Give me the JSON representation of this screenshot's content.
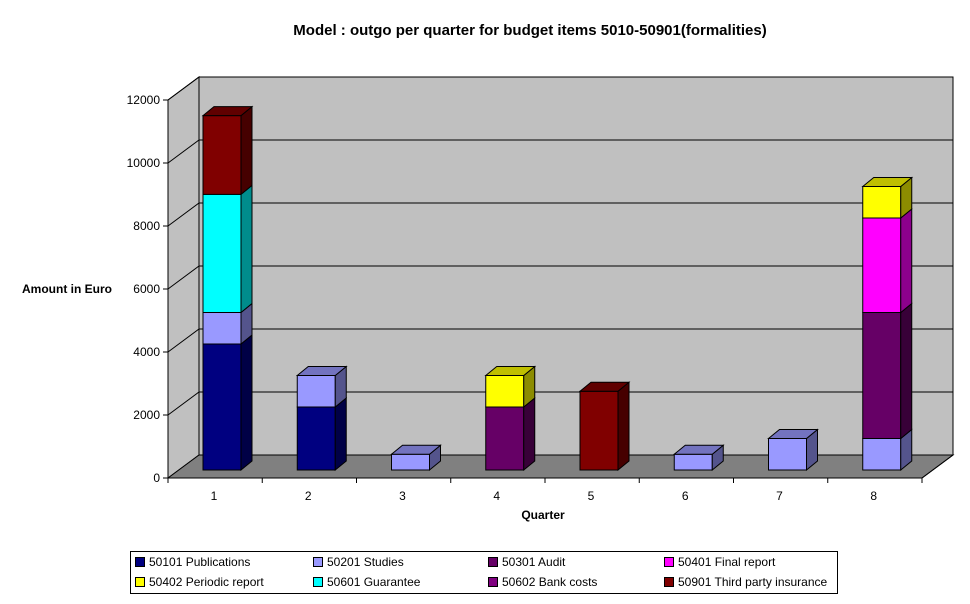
{
  "colors": {
    "wall": "#c0c0c0",
    "floor": "#808080",
    "grid": "#000000"
  },
  "chart_data": {
    "type": "bar",
    "stacked": true,
    "three_d": true,
    "title": "Model : outgo per quarter for budget items 5010-50901(formalities)",
    "xlabel": "Quarter",
    "ylabel": "Amount in Euro",
    "ylim": [
      0,
      12000
    ],
    "yticks": [
      "0",
      "2000",
      "4000",
      "6000",
      "8000",
      "10000",
      "12000"
    ],
    "categories": [
      "1",
      "2",
      "3",
      "4",
      "5",
      "6",
      "7",
      "8"
    ],
    "grid": true,
    "legend_position": "bottom",
    "series": [
      {
        "name": "50101 Publications",
        "color": "#000080",
        "values": [
          4000,
          2000,
          0,
          0,
          0,
          0,
          0,
          0
        ]
      },
      {
        "name": "50201 Studies",
        "color": "#9999ff",
        "values": [
          1000,
          1000,
          500,
          0,
          0,
          500,
          1000,
          1000
        ]
      },
      {
        "name": "50301 Audit",
        "color": "#660066",
        "values": [
          0,
          0,
          0,
          2000,
          0,
          0,
          0,
          4000
        ]
      },
      {
        "name": "50401 Final report",
        "color": "#ff00ff",
        "values": [
          0,
          0,
          0,
          0,
          0,
          0,
          0,
          3000
        ]
      },
      {
        "name": "50402 Periodic report",
        "color": "#ffff00",
        "values": [
          0,
          0,
          0,
          1000,
          0,
          0,
          0,
          1000
        ]
      },
      {
        "name": "50601 Guarantee",
        "color": "#00ffff",
        "values": [
          3750,
          0,
          0,
          0,
          0,
          0,
          0,
          0
        ]
      },
      {
        "name": "50602 Bank costs",
        "color": "#800080",
        "values": [
          0,
          0,
          0,
          0,
          0,
          0,
          0,
          0
        ]
      },
      {
        "name": "50901 Third party insurance",
        "color": "#800000",
        "values": [
          2500,
          0,
          0,
          0,
          2500,
          0,
          0,
          0
        ]
      }
    ]
  }
}
